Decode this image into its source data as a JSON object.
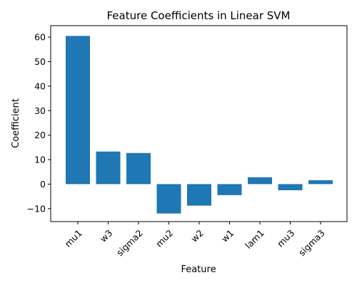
{
  "chart_data": {
    "type": "bar",
    "title": "Feature Coefficients in Linear SVM",
    "xlabel": "Feature",
    "ylabel": "Coefficient",
    "categories": [
      "mu1",
      "w3",
      "sigma2",
      "mu2",
      "w2",
      "w1",
      "lam1",
      "mu3",
      "sigma3"
    ],
    "values": [
      60.5,
      13.3,
      12.7,
      -12.0,
      -8.8,
      -4.5,
      2.8,
      -2.5,
      1.6
    ],
    "ylim": [
      -15.3,
      64.7
    ],
    "yticks": [
      -10,
      0,
      10,
      20,
      30,
      40,
      50,
      60
    ],
    "grid": false,
    "bar_color": "#1f77b4"
  }
}
